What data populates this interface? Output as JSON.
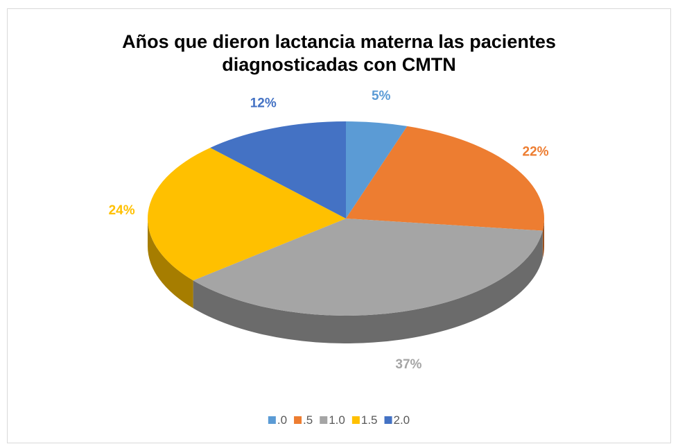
{
  "chart_data": {
    "type": "pie",
    "title": "Años que dieron lactancia materna las pacientes diagnosticadas con CMTN",
    "categories": [
      ".0",
      ".5",
      "1.0",
      "1.5",
      "2.0"
    ],
    "values": [
      5,
      22,
      37,
      24,
      12
    ],
    "value_labels": [
      "5%",
      "22%",
      "37%",
      "24%",
      "12%"
    ],
    "colors": [
      "#5b9bd5",
      "#ed7d31",
      "#a5a5a5",
      "#ffc000",
      "#4472c4"
    ],
    "legend": "bottom"
  }
}
